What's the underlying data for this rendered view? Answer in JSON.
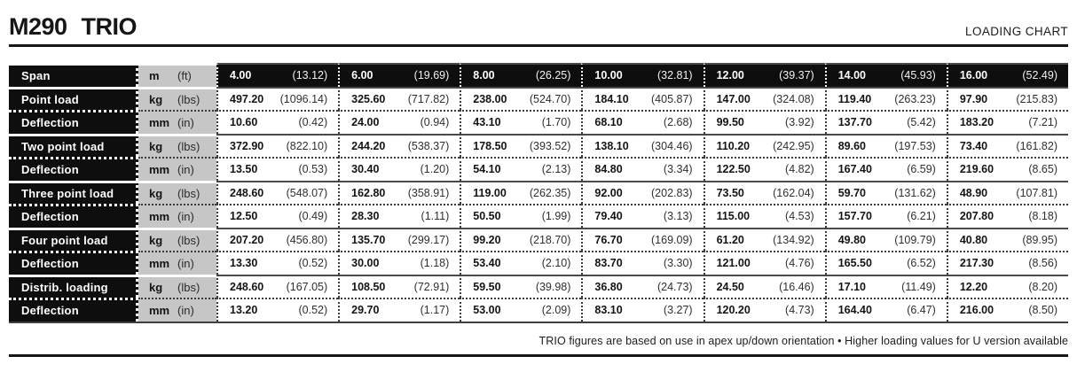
{
  "header": {
    "title": "M290 TRIO",
    "subtitle": "LOADING CHART"
  },
  "footer": {
    "note": "TRIO figures are based on use in apex up/down orientation • Higher loading values for U version available"
  },
  "colors": {
    "label_bg": "#0e0e0e",
    "unit_bg": "#c6c6c6",
    "rule": "#161616"
  },
  "table": {
    "rows": [
      {
        "label": "Span",
        "unit_metric": "m",
        "unit_imperial": "(ft)",
        "type": "rhead",
        "sep": "group-start",
        "cells": [
          {
            "m": "4.00",
            "i": "(13.12)"
          },
          {
            "m": "6.00",
            "i": "(19.69)"
          },
          {
            "m": "8.00",
            "i": "(26.25)"
          },
          {
            "m": "10.00",
            "i": "(32.81)"
          },
          {
            "m": "12.00",
            "i": "(39.37)"
          },
          {
            "m": "14.00",
            "i": "(45.93)"
          },
          {
            "m": "16.00",
            "i": "(52.49)"
          }
        ]
      },
      {
        "label": "Point load",
        "unit_metric": "kg",
        "unit_imperial": "(lbs)",
        "type": "rload",
        "sep": "group-start",
        "cells": [
          {
            "m": "497.20",
            "i": "(1096.14)"
          },
          {
            "m": "325.60",
            "i": "(717.82)"
          },
          {
            "m": "238.00",
            "i": "(524.70)"
          },
          {
            "m": "184.10",
            "i": "(405.87)"
          },
          {
            "m": "147.00",
            "i": "(324.08)"
          },
          {
            "m": "119.40",
            "i": "(263.23)"
          },
          {
            "m": "97.90",
            "i": "(215.83)"
          }
        ]
      },
      {
        "label": "Deflection",
        "unit_metric": "mm",
        "unit_imperial": "(in)",
        "type": "rdefl",
        "sep": "pair",
        "cells": [
          {
            "m": "10.60",
            "i": "(0.42)"
          },
          {
            "m": "24.00",
            "i": "(0.94)"
          },
          {
            "m": "43.10",
            "i": "(1.70)"
          },
          {
            "m": "68.10",
            "i": "(2.68)"
          },
          {
            "m": "99.50",
            "i": "(3.92)"
          },
          {
            "m": "137.70",
            "i": "(5.42)"
          },
          {
            "m": "183.20",
            "i": "(7.21)"
          }
        ]
      },
      {
        "label": "Two point load",
        "unit_metric": "kg",
        "unit_imperial": "(lbs)",
        "type": "rload",
        "sep": "group-start",
        "cells": [
          {
            "m": "372.90",
            "i": "(822.10)"
          },
          {
            "m": "244.20",
            "i": "(538.37)"
          },
          {
            "m": "178.50",
            "i": "(393.52)"
          },
          {
            "m": "138.10",
            "i": "(304.46)"
          },
          {
            "m": "110.20",
            "i": "(242.95)"
          },
          {
            "m": "89.60",
            "i": "(197.53)"
          },
          {
            "m": "73.40",
            "i": "(161.82)"
          }
        ]
      },
      {
        "label": "Deflection",
        "unit_metric": "mm",
        "unit_imperial": "(in)",
        "type": "rdefl",
        "sep": "pair",
        "cells": [
          {
            "m": "13.50",
            "i": "(0.53)"
          },
          {
            "m": "30.40",
            "i": "(1.20)"
          },
          {
            "m": "54.10",
            "i": "(2.13)"
          },
          {
            "m": "84.80",
            "i": "(3.34)"
          },
          {
            "m": "122.50",
            "i": "(4.82)"
          },
          {
            "m": "167.40",
            "i": "(6.59)"
          },
          {
            "m": "219.60",
            "i": "(8.65)"
          }
        ]
      },
      {
        "label": "Three point load",
        "unit_metric": "kg",
        "unit_imperial": "(lbs)",
        "type": "rload",
        "sep": "group-start",
        "cells": [
          {
            "m": "248.60",
            "i": "(548.07)"
          },
          {
            "m": "162.80",
            "i": "(358.91)"
          },
          {
            "m": "119.00",
            "i": "(262.35)"
          },
          {
            "m": "92.00",
            "i": "(202.83)"
          },
          {
            "m": "73.50",
            "i": "(162.04)"
          },
          {
            "m": "59.70",
            "i": "(131.62)"
          },
          {
            "m": "48.90",
            "i": "(107.81)"
          }
        ]
      },
      {
        "label": "Deflection",
        "unit_metric": "mm",
        "unit_imperial": "(in)",
        "type": "rdefl",
        "sep": "pair",
        "cells": [
          {
            "m": "12.50",
            "i": "(0.49)"
          },
          {
            "m": "28.30",
            "i": "(1.11)"
          },
          {
            "m": "50.50",
            "i": "(1.99)"
          },
          {
            "m": "79.40",
            "i": "(3.13)"
          },
          {
            "m": "115.00",
            "i": "(4.53)"
          },
          {
            "m": "157.70",
            "i": "(6.21)"
          },
          {
            "m": "207.80",
            "i": "(8.18)"
          }
        ]
      },
      {
        "label": "Four point load",
        "unit_metric": "kg",
        "unit_imperial": "(lbs)",
        "type": "rload",
        "sep": "group-start",
        "cells": [
          {
            "m": "207.20",
            "i": "(456.80)"
          },
          {
            "m": "135.70",
            "i": "(299.17)"
          },
          {
            "m": "99.20",
            "i": "(218.70)"
          },
          {
            "m": "76.70",
            "i": "(169.09)"
          },
          {
            "m": "61.20",
            "i": "(134.92)"
          },
          {
            "m": "49.80",
            "i": "(109.79)"
          },
          {
            "m": "40.80",
            "i": "(89.95)"
          }
        ]
      },
      {
        "label": "Deflection",
        "unit_metric": "mm",
        "unit_imperial": "(in)",
        "type": "rdefl",
        "sep": "pair",
        "cells": [
          {
            "m": "13.30",
            "i": "(0.52)"
          },
          {
            "m": "30.00",
            "i": "(1.18)"
          },
          {
            "m": "53.40",
            "i": "(2.10)"
          },
          {
            "m": "83.70",
            "i": "(3.30)"
          },
          {
            "m": "121.00",
            "i": "(4.76)"
          },
          {
            "m": "165.50",
            "i": "(6.52)"
          },
          {
            "m": "217.30",
            "i": "(8.56)"
          }
        ]
      },
      {
        "label": "Distrib. loading",
        "unit_metric": "kg",
        "unit_imperial": "(lbs)",
        "type": "rload",
        "sep": "group-start",
        "cells": [
          {
            "m": "248.60",
            "i": "(167.05)"
          },
          {
            "m": "108.50",
            "i": "(72.91)"
          },
          {
            "m": "59.50",
            "i": "(39.98)"
          },
          {
            "m": "36.80",
            "i": "(24.73)"
          },
          {
            "m": "24.50",
            "i": "(16.46)"
          },
          {
            "m": "17.10",
            "i": "(11.49)"
          },
          {
            "m": "12.20",
            "i": "(8.20)"
          }
        ]
      },
      {
        "label": "Deflection",
        "unit_metric": "mm",
        "unit_imperial": "(in)",
        "type": "rdefl",
        "sep": "pair",
        "cells": [
          {
            "m": "13.20",
            "i": "(0.52)"
          },
          {
            "m": "29.70",
            "i": "(1.17)"
          },
          {
            "m": "53.00",
            "i": "(2.09)"
          },
          {
            "m": "83.10",
            "i": "(3.27)"
          },
          {
            "m": "120.20",
            "i": "(4.73)"
          },
          {
            "m": "164.40",
            "i": "(6.47)"
          },
          {
            "m": "216.00",
            "i": "(8.50)"
          }
        ]
      }
    ]
  }
}
